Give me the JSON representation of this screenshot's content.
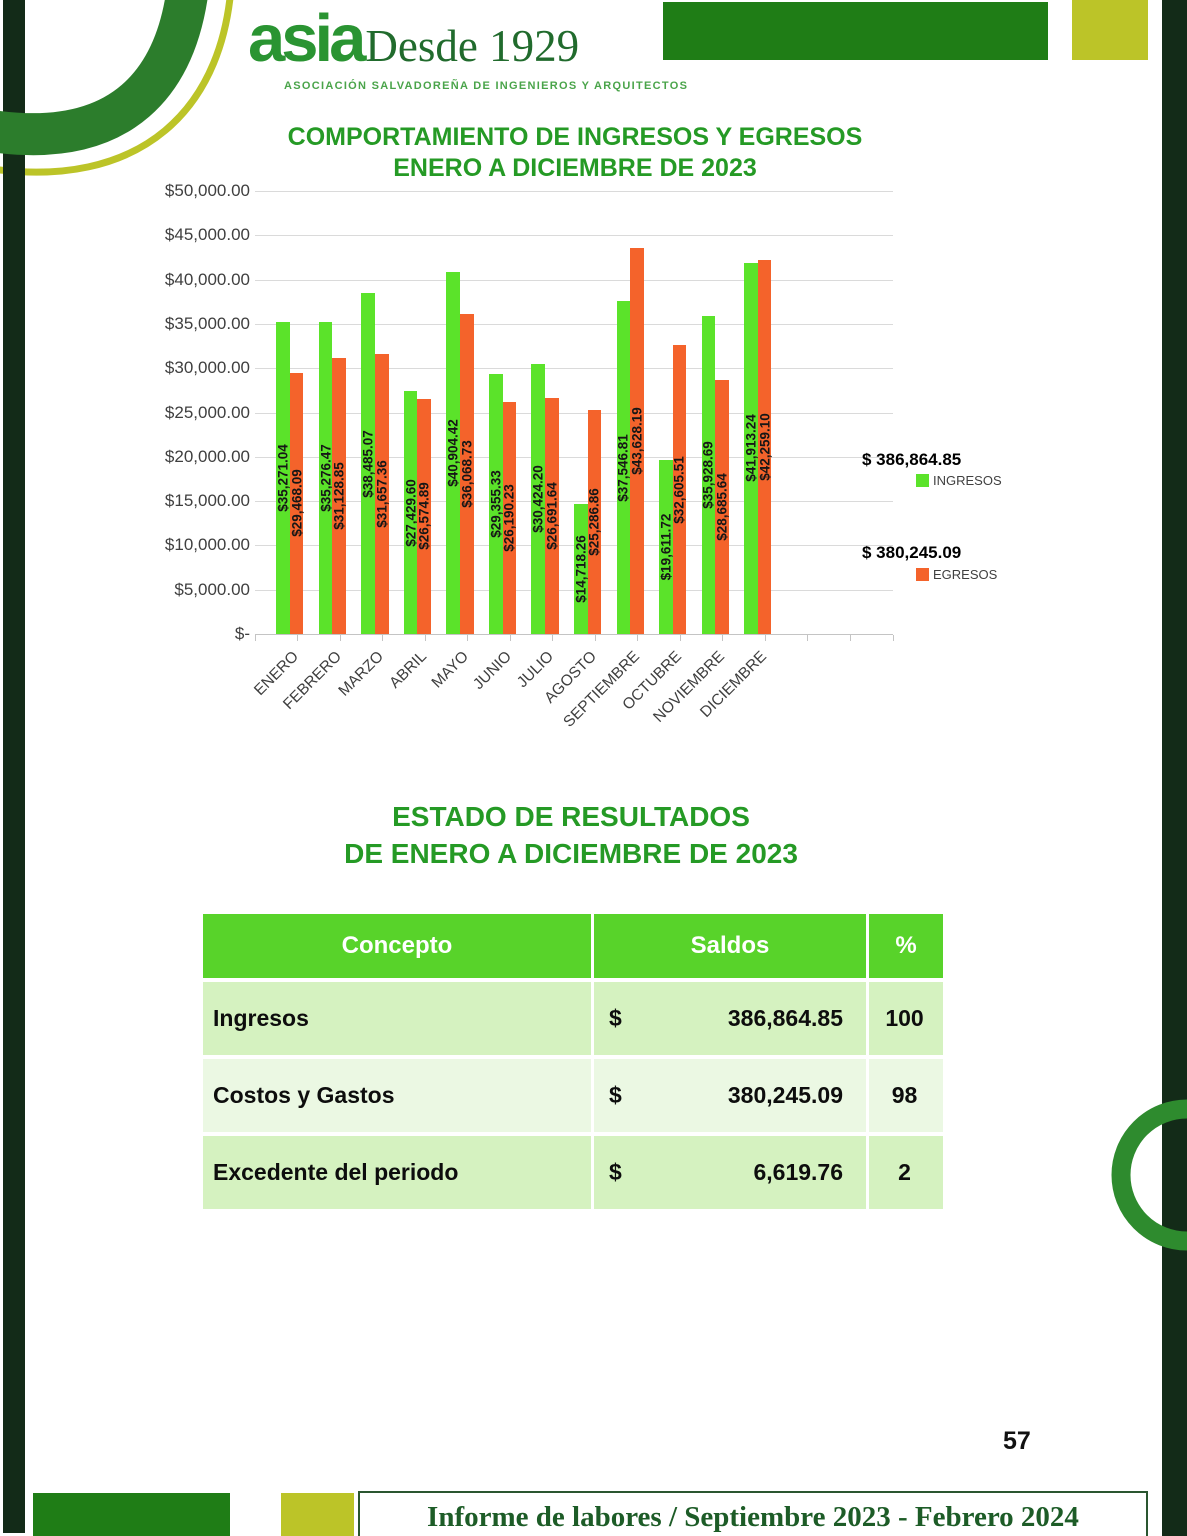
{
  "page": {
    "number": "57"
  },
  "logo": {
    "wordmark": "asia",
    "tagline": "Desde 1929",
    "subtitle": "ASOCIACIÓN SALVADOREÑA DE INGENIEROS Y ARQUITECTOS"
  },
  "chart": {
    "title_line1": "COMPORTAMIENTO DE INGRESOS Y EGRESOS",
    "title_line2": "ENERO A DICIEMBRE DE 2023",
    "legend": {
      "ingresos_total": "$ 386,864.85",
      "ingresos_label": "INGRESOS",
      "egresos_total": "$ 380,245.09",
      "egresos_label": "EGRESOS"
    }
  },
  "chart_data": {
    "type": "bar",
    "title": "COMPORTAMIENTO DE INGRESOS Y EGRESOS ENERO A DICIEMBRE DE 2023",
    "categories": [
      "ENERO",
      "FEBRERO",
      "MARZO",
      "ABRIL",
      "MAYO",
      "JUNIO",
      "JULIO",
      "AGOSTO",
      "SEPTIEMBRE",
      "OCTUBRE",
      "NOVIEMBRE",
      "DICIEMBRE"
    ],
    "series": [
      {
        "name": "INGRESOS",
        "color": "#5be32a",
        "total": 386864.85,
        "total_label": "$ 386,864.85",
        "values": [
          35271.04,
          35276.47,
          38485.07,
          27429.6,
          40904.42,
          29355.33,
          30424.2,
          14718.26,
          37546.81,
          19611.72,
          35928.69,
          41913.24
        ],
        "labels": [
          "$35,271.04",
          "$35,276.47",
          "$38,485.07",
          "$27,429.60",
          "$40,904.42",
          "$29,355.33",
          "$30,424.20",
          "$14,718.26",
          "$37,546.81",
          "$19,611.72",
          "$35,928.69",
          "$41,913.24"
        ]
      },
      {
        "name": "EGRESOS",
        "color": "#f4632b",
        "total": 380245.09,
        "total_label": "$ 380,245.09",
        "values": [
          29468.09,
          31128.85,
          31657.36,
          26574.89,
          36068.73,
          26190.23,
          26691.64,
          25286.86,
          43628.19,
          32605.51,
          28685.64,
          42259.1
        ],
        "labels": [
          "$29,468.09",
          "$31,128.85",
          "$31,657.36",
          "$26,574.89",
          "$36,068.73",
          "$26,190.23",
          "$26,691.64",
          "$25,286.86",
          "$43,628.19",
          "$32,605.51",
          "$28,685.64",
          "$42,259.10"
        ]
      }
    ],
    "ylim": [
      0,
      50000
    ],
    "y_tick_step": 5000,
    "y_tick_labels": [
      "$-",
      "$5,000.00",
      "$10,000.00",
      "$15,000.00",
      "$20,000.00",
      "$25,000.00",
      "$30,000.00",
      "$35,000.00",
      "$40,000.00",
      "$45,000.00",
      "$50,000.00"
    ],
    "grid": true,
    "legend_position": "right",
    "x_labels_rotation": -45
  },
  "results": {
    "title_line1": "ESTADO DE RESULTADOS",
    "title_line2": "DE ENERO A DICIEMBRE DE 2023",
    "columns": [
      "Concepto",
      "Saldos",
      "%"
    ],
    "rows": [
      {
        "concepto": "Ingresos",
        "currency": "$",
        "saldo": "386,864.85",
        "pct": "100"
      },
      {
        "concepto": "Costos y Gastos",
        "currency": "$",
        "saldo": "380,245.09",
        "pct": "98"
      },
      {
        "concepto": "Excedente del periodo",
        "currency": "$",
        "saldo": "6,619.76",
        "pct": "2"
      }
    ]
  },
  "footer": {
    "text": "Informe de labores / Septiembre 2023 - Febrero 2024"
  }
}
